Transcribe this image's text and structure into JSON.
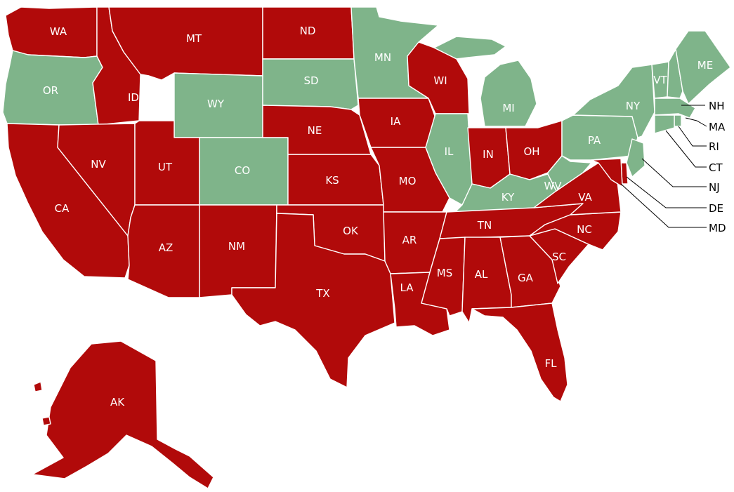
{
  "colors": {
    "red": "#b10a0a",
    "green": "#7fb48a"
  },
  "states": [
    {
      "id": "WA",
      "label": "WA",
      "group": "red"
    },
    {
      "id": "OR",
      "label": "OR",
      "group": "green"
    },
    {
      "id": "CA",
      "label": "CA",
      "group": "red"
    },
    {
      "id": "ID",
      "label": "ID",
      "group": "red"
    },
    {
      "id": "NV",
      "label": "NV",
      "group": "red"
    },
    {
      "id": "MT",
      "label": "MT",
      "group": "red"
    },
    {
      "id": "WY",
      "label": "WY",
      "group": "green"
    },
    {
      "id": "UT",
      "label": "UT",
      "group": "red"
    },
    {
      "id": "AZ",
      "label": "AZ",
      "group": "red"
    },
    {
      "id": "CO",
      "label": "CO",
      "group": "green"
    },
    {
      "id": "NM",
      "label": "NM",
      "group": "red"
    },
    {
      "id": "ND",
      "label": "ND",
      "group": "red"
    },
    {
      "id": "SD",
      "label": "SD",
      "group": "green"
    },
    {
      "id": "NE",
      "label": "NE",
      "group": "red"
    },
    {
      "id": "KS",
      "label": "KS",
      "group": "red"
    },
    {
      "id": "OK",
      "label": "OK",
      "group": "red"
    },
    {
      "id": "TX",
      "label": "TX",
      "group": "red"
    },
    {
      "id": "MN",
      "label": "MN",
      "group": "green"
    },
    {
      "id": "IA",
      "label": "IA",
      "group": "red"
    },
    {
      "id": "MO",
      "label": "MO",
      "group": "red"
    },
    {
      "id": "AR",
      "label": "AR",
      "group": "red"
    },
    {
      "id": "LA",
      "label": "LA",
      "group": "red"
    },
    {
      "id": "WI",
      "label": "WI",
      "group": "red"
    },
    {
      "id": "IL",
      "label": "IL",
      "group": "green"
    },
    {
      "id": "MI",
      "label": "MI",
      "group": "green"
    },
    {
      "id": "IN",
      "label": "IN",
      "group": "red"
    },
    {
      "id": "OH",
      "label": "OH",
      "group": "red"
    },
    {
      "id": "KY",
      "label": "KY",
      "group": "green"
    },
    {
      "id": "TN",
      "label": "TN",
      "group": "red"
    },
    {
      "id": "MS",
      "label": "MS",
      "group": "red"
    },
    {
      "id": "AL",
      "label": "AL",
      "group": "red"
    },
    {
      "id": "GA",
      "label": "GA",
      "group": "red"
    },
    {
      "id": "FL",
      "label": "FL",
      "group": "red"
    },
    {
      "id": "SC",
      "label": "SC",
      "group": "red"
    },
    {
      "id": "NC",
      "label": "NC",
      "group": "red"
    },
    {
      "id": "VA",
      "label": "VA",
      "group": "red"
    },
    {
      "id": "WV",
      "label": "WV",
      "group": "green"
    },
    {
      "id": "PA",
      "label": "PA",
      "group": "green"
    },
    {
      "id": "NY",
      "label": "NY",
      "group": "green"
    },
    {
      "id": "VT",
      "label": "VT",
      "group": "green"
    },
    {
      "id": "ME",
      "label": "ME",
      "group": "green"
    },
    {
      "id": "NH",
      "label": "NH",
      "group": "green"
    },
    {
      "id": "MA",
      "label": "MA",
      "group": "green"
    },
    {
      "id": "RI",
      "label": "RI",
      "group": "green"
    },
    {
      "id": "CT",
      "label": "CT",
      "group": "green"
    },
    {
      "id": "NJ",
      "label": "NJ",
      "group": "green"
    },
    {
      "id": "DE",
      "label": "DE",
      "group": "red"
    },
    {
      "id": "MD",
      "label": "MD",
      "group": "red"
    },
    {
      "id": "AK",
      "label": "AK",
      "group": "red"
    }
  ]
}
